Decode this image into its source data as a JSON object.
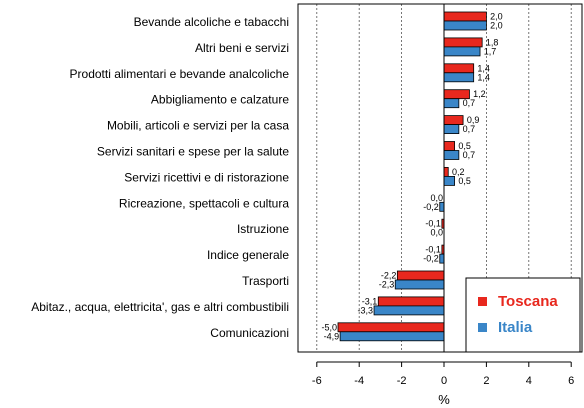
{
  "chart_data": {
    "type": "bar",
    "orientation": "horizontal",
    "categories": [
      "Bevande alcoliche e tabacchi",
      "Altri beni e servizi",
      "Prodotti alimentari e bevande analcoliche",
      "Abbigliamento e calzature",
      "Mobili, articoli e servizi per la casa",
      "Servizi sanitari e spese per la salute",
      "Servizi ricettivi e di ristorazione",
      "Ricreazione, spettacoli e cultura",
      "Istruzione",
      "Indice generale",
      "Trasporti",
      "Abitaz., acqua, elettricita', gas e altri combustibili",
      "Comunicazioni"
    ],
    "series": [
      {
        "name": "Toscana",
        "color": "#e8281e",
        "values": [
          2.0,
          1.8,
          1.4,
          1.2,
          0.9,
          0.5,
          0.2,
          0.0,
          -0.1,
          -0.1,
          -2.2,
          -3.1,
          -5.0
        ],
        "labels": [
          "2,0",
          "1,8",
          "1,4",
          "1,2",
          "0,9",
          "0,5",
          "0,2",
          "0,0",
          "-0,1",
          "-0,1",
          "-2,2",
          "-3,1",
          "-5,0"
        ]
      },
      {
        "name": "Italia",
        "color": "#3a86c8",
        "values": [
          2.0,
          1.7,
          1.4,
          0.7,
          0.7,
          0.7,
          0.5,
          -0.2,
          0.0,
          -0.2,
          -2.3,
          -3.3,
          -4.9
        ],
        "labels": [
          "2,0",
          "1,7",
          "1,4",
          "0,7",
          "0,7",
          "0,7",
          "0,5",
          "-0,2",
          "0,0",
          "-0,2",
          "-2,3",
          "-3,3",
          "-4,9"
        ]
      }
    ],
    "xlabel": "%",
    "xlim": [
      -7,
      6.5
    ],
    "xticks": [
      -6,
      -4,
      -2,
      0,
      2,
      4,
      6
    ],
    "xtick_labels": [
      "-6",
      "-4",
      "-2",
      "0",
      "2",
      "4",
      "6"
    ],
    "grid": "vertical dotted lines at ticks",
    "legend_position": "bottom-right",
    "bar_outline_color": "#000000"
  }
}
